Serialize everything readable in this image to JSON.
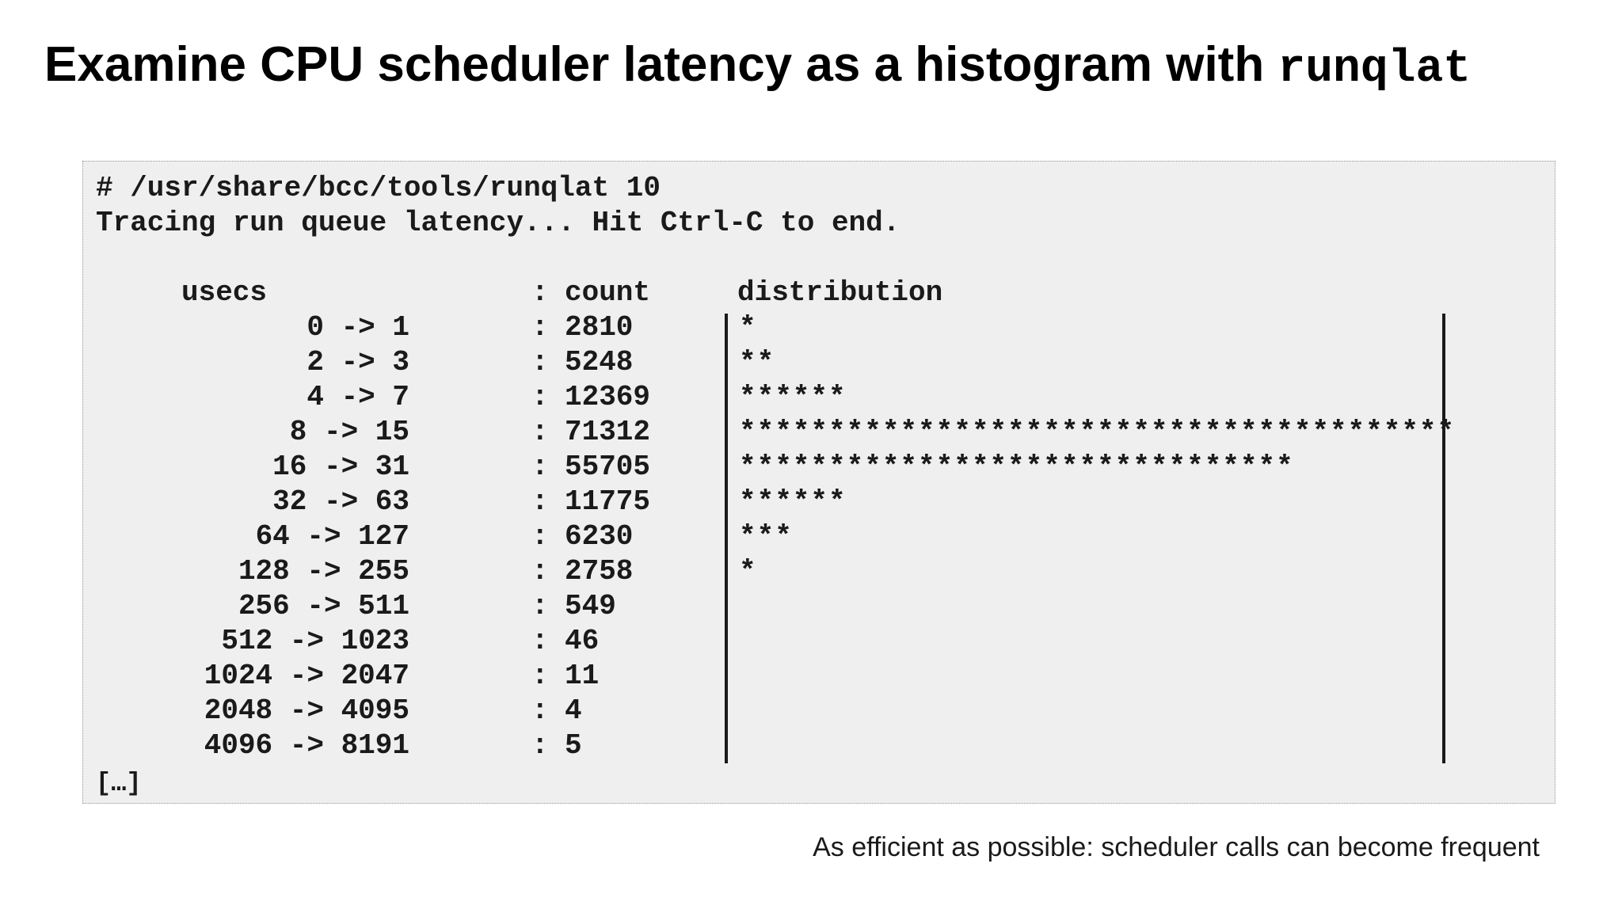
{
  "title": {
    "text": "Examine CPU scheduler latency as a histogram with ",
    "code": "runqlat"
  },
  "terminal": {
    "command": "# /usr/share/bcc/tools/runqlat 10",
    "status": "Tracing run queue latency... Hit Ctrl-C to end.",
    "headers": {
      "range": "usecs",
      "colon": ":",
      "count": "count",
      "distribution": "distribution"
    },
    "rows": [
      {
        "range": "0 -> 1",
        "count": "2810",
        "stars": "*"
      },
      {
        "range": "2 -> 3",
        "count": "5248",
        "stars": "**"
      },
      {
        "range": "4 -> 7",
        "count": "12369",
        "stars": "******"
      },
      {
        "range": "8 -> 15",
        "count": "71312",
        "stars": "****************************************"
      },
      {
        "range": "16 -> 31",
        "count": "55705",
        "stars": "*******************************"
      },
      {
        "range": "32 -> 63",
        "count": "11775",
        "stars": "******"
      },
      {
        "range": "64 -> 127",
        "count": "6230",
        "stars": "***"
      },
      {
        "range": "128 -> 255",
        "count": "2758",
        "stars": "*"
      },
      {
        "range": "256 -> 511",
        "count": "549",
        "stars": ""
      },
      {
        "range": "512 -> 1023",
        "count": "46",
        "stars": ""
      },
      {
        "range": "1024 -> 2047",
        "count": "11",
        "stars": ""
      },
      {
        "range": "2048 -> 4095",
        "count": "4",
        "stars": ""
      },
      {
        "range": "4096 -> 8191",
        "count": "5",
        "stars": ""
      }
    ],
    "ellipsis": "[…]"
  },
  "caption": "As efficient as possible: scheduler calls can become frequent"
}
